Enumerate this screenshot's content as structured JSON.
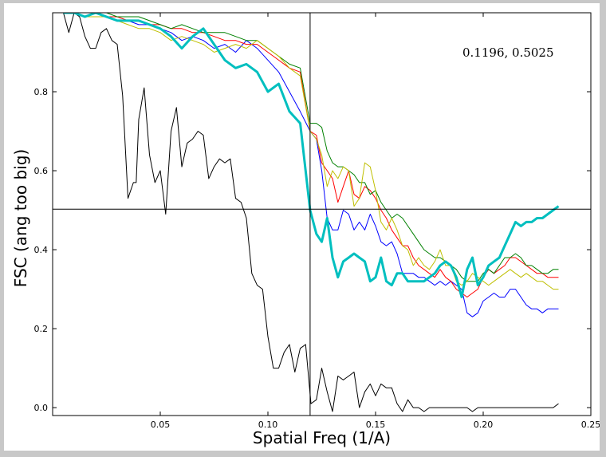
{
  "chart_data": {
    "type": "line",
    "title": "",
    "xlabel": "Spatial Freq (1/A)",
    "ylabel": "FSC (ang too big)",
    "xlim": [
      0.0,
      0.25
    ],
    "ylim": [
      -0.02,
      1.0
    ],
    "xticks": [
      0.05,
      0.1,
      0.15,
      0.2,
      0.25
    ],
    "xtick_labels": [
      "0.05",
      "0.10",
      "0.15",
      "0.20",
      "0.25"
    ],
    "yticks": [
      0.0,
      0.2,
      0.4,
      0.6,
      0.8
    ],
    "ytick_labels": [
      "0.0",
      "0.2",
      "0.4",
      "0.6",
      "0.8"
    ],
    "grid": false,
    "legend": "none",
    "annotation": {
      "text": "0.1196, 0.5025",
      "x": 0.1196,
      "y": 0.5025
    },
    "crosshair": {
      "x": 0.1196,
      "y": 0.5025
    },
    "series": [
      {
        "color": "#000000",
        "width": 1,
        "x": [
          0.005,
          0.0075,
          0.01,
          0.0125,
          0.015,
          0.0175,
          0.02,
          0.0225,
          0.025,
          0.0275,
          0.03,
          0.0325,
          0.035,
          0.0375,
          0.0388,
          0.04,
          0.0425,
          0.045,
          0.0475,
          0.05,
          0.0525,
          0.055,
          0.0575,
          0.06,
          0.0625,
          0.065,
          0.0675,
          0.07,
          0.0725,
          0.075,
          0.0775,
          0.08,
          0.0825,
          0.085,
          0.0875,
          0.09,
          0.0925,
          0.095,
          0.0975,
          0.1,
          0.1025,
          0.105,
          0.1075,
          0.11,
          0.1125,
          0.115,
          0.1175,
          0.12,
          0.1225,
          0.125,
          0.1275,
          0.13,
          0.1325,
          0.135,
          0.1375,
          0.14,
          0.1425,
          0.145,
          0.1475,
          0.15,
          0.1525,
          0.155,
          0.1575,
          0.16,
          0.1625,
          0.165,
          0.1675,
          0.17,
          0.1725,
          0.175,
          0.1775,
          0.18,
          0.1825,
          0.185,
          0.1875,
          0.19,
          0.1925,
          0.195,
          0.1975,
          0.2,
          0.2025,
          0.205,
          0.2075,
          0.21,
          0.2125,
          0.215,
          0.2175,
          0.22,
          0.2225,
          0.225,
          0.2275,
          0.23,
          0.2325,
          0.235
        ],
        "y": [
          1.0,
          0.95,
          1.0,
          0.99,
          0.94,
          0.91,
          0.91,
          0.95,
          0.96,
          0.93,
          0.92,
          0.79,
          0.53,
          0.57,
          0.57,
          0.73,
          0.81,
          0.64,
          0.57,
          0.6,
          0.49,
          0.7,
          0.76,
          0.61,
          0.67,
          0.68,
          0.7,
          0.69,
          0.58,
          0.61,
          0.63,
          0.62,
          0.63,
          0.53,
          0.52,
          0.48,
          0.34,
          0.31,
          0.3,
          0.18,
          0.1,
          0.1,
          0.14,
          0.16,
          0.09,
          0.15,
          0.16,
          0.01,
          0.02,
          0.1,
          0.04,
          -0.01,
          0.08,
          0.07,
          0.08,
          0.09,
          0.0,
          0.04,
          0.06,
          0.03,
          0.06,
          0.05,
          0.05,
          0.01,
          -0.01,
          0.02,
          0.0,
          0.0,
          -0.01,
          0.0,
          0.0,
          0.0,
          0.0,
          0.0,
          0.0,
          0.0,
          0.0,
          -0.01,
          0.0,
          0.0,
          0.0,
          0.0,
          0.0,
          0.0,
          0.0,
          0.0,
          0.0,
          0.0,
          0.0,
          0.0,
          0.0,
          0.0,
          0.0,
          0.01
        ]
      },
      {
        "color": "#0000ff",
        "width": 1,
        "x": [
          0.005,
          0.01,
          0.015,
          0.02,
          0.025,
          0.03,
          0.035,
          0.04,
          0.045,
          0.05,
          0.055,
          0.06,
          0.065,
          0.07,
          0.075,
          0.08,
          0.085,
          0.09,
          0.095,
          0.1,
          0.105,
          0.11,
          0.115,
          0.1196,
          0.1225,
          0.125,
          0.1275,
          0.13,
          0.1325,
          0.135,
          0.1375,
          0.14,
          0.1425,
          0.145,
          0.1475,
          0.15,
          0.1525,
          0.155,
          0.1575,
          0.16,
          0.1625,
          0.165,
          0.1675,
          0.17,
          0.1725,
          0.175,
          0.1775,
          0.18,
          0.1825,
          0.185,
          0.1875,
          0.19,
          0.1925,
          0.195,
          0.1975,
          0.2,
          0.2025,
          0.205,
          0.2075,
          0.21,
          0.2125,
          0.215,
          0.2175,
          0.22,
          0.2225,
          0.225,
          0.2275,
          0.23,
          0.2325,
          0.235
        ],
        "y": [
          1.0,
          1.0,
          0.99,
          1.0,
          0.99,
          0.98,
          0.98,
          0.97,
          0.97,
          0.96,
          0.95,
          0.93,
          0.94,
          0.93,
          0.91,
          0.92,
          0.9,
          0.93,
          0.91,
          0.88,
          0.85,
          0.8,
          0.75,
          0.7,
          0.68,
          0.6,
          0.48,
          0.45,
          0.45,
          0.5,
          0.49,
          0.45,
          0.47,
          0.45,
          0.49,
          0.46,
          0.42,
          0.41,
          0.42,
          0.39,
          0.34,
          0.34,
          0.34,
          0.33,
          0.33,
          0.32,
          0.31,
          0.32,
          0.31,
          0.32,
          0.31,
          0.3,
          0.24,
          0.23,
          0.24,
          0.27,
          0.28,
          0.29,
          0.28,
          0.28,
          0.3,
          0.3,
          0.28,
          0.26,
          0.25,
          0.25,
          0.24,
          0.25,
          0.25,
          0.25
        ]
      },
      {
        "color": "#ff0000",
        "width": 1,
        "x": [
          0.005,
          0.01,
          0.015,
          0.02,
          0.025,
          0.03,
          0.035,
          0.04,
          0.045,
          0.05,
          0.055,
          0.06,
          0.065,
          0.07,
          0.075,
          0.08,
          0.085,
          0.09,
          0.095,
          0.1,
          0.105,
          0.11,
          0.115,
          0.1196,
          0.1225,
          0.125,
          0.1275,
          0.13,
          0.1325,
          0.135,
          0.1375,
          0.14,
          0.1425,
          0.145,
          0.1475,
          0.15,
          0.1525,
          0.155,
          0.1575,
          0.16,
          0.1625,
          0.165,
          0.1675,
          0.17,
          0.1725,
          0.175,
          0.1775,
          0.18,
          0.1825,
          0.185,
          0.1875,
          0.19,
          0.1925,
          0.195,
          0.1975,
          0.2,
          0.2025,
          0.205,
          0.2075,
          0.21,
          0.2125,
          0.215,
          0.2175,
          0.22,
          0.2225,
          0.225,
          0.2275,
          0.23,
          0.2325,
          0.235
        ],
        "y": [
          1.0,
          1.0,
          1.0,
          1.0,
          0.99,
          0.99,
          0.98,
          0.98,
          0.97,
          0.97,
          0.96,
          0.96,
          0.95,
          0.95,
          0.94,
          0.93,
          0.93,
          0.92,
          0.92,
          0.9,
          0.88,
          0.86,
          0.85,
          0.7,
          0.69,
          0.62,
          0.6,
          0.58,
          0.52,
          0.56,
          0.6,
          0.54,
          0.53,
          0.56,
          0.55,
          0.53,
          0.5,
          0.48,
          0.45,
          0.43,
          0.41,
          0.41,
          0.38,
          0.36,
          0.35,
          0.34,
          0.33,
          0.35,
          0.33,
          0.32,
          0.3,
          0.29,
          0.28,
          0.29,
          0.3,
          0.33,
          0.35,
          0.34,
          0.35,
          0.36,
          0.38,
          0.38,
          0.37,
          0.36,
          0.35,
          0.34,
          0.34,
          0.33,
          0.33,
          0.33
        ]
      },
      {
        "color": "#008000",
        "width": 1,
        "x": [
          0.005,
          0.01,
          0.015,
          0.02,
          0.025,
          0.03,
          0.035,
          0.04,
          0.045,
          0.05,
          0.055,
          0.06,
          0.065,
          0.07,
          0.075,
          0.08,
          0.085,
          0.09,
          0.095,
          0.1,
          0.105,
          0.11,
          0.115,
          0.1196,
          0.1225,
          0.125,
          0.1275,
          0.13,
          0.1325,
          0.135,
          0.1375,
          0.14,
          0.1425,
          0.145,
          0.1475,
          0.15,
          0.1525,
          0.155,
          0.1575,
          0.16,
          0.1625,
          0.165,
          0.1675,
          0.17,
          0.1725,
          0.175,
          0.1775,
          0.18,
          0.1825,
          0.185,
          0.1875,
          0.19,
          0.1925,
          0.195,
          0.1975,
          0.2,
          0.2025,
          0.205,
          0.2075,
          0.21,
          0.2125,
          0.215,
          0.2175,
          0.22,
          0.2225,
          0.225,
          0.2275,
          0.23,
          0.2325,
          0.235
        ],
        "y": [
          1.0,
          1.0,
          1.0,
          1.0,
          1.0,
          0.99,
          0.99,
          0.99,
          0.98,
          0.97,
          0.96,
          0.97,
          0.96,
          0.95,
          0.95,
          0.95,
          0.94,
          0.93,
          0.93,
          0.91,
          0.89,
          0.87,
          0.86,
          0.72,
          0.72,
          0.71,
          0.65,
          0.62,
          0.61,
          0.61,
          0.6,
          0.59,
          0.57,
          0.57,
          0.54,
          0.55,
          0.52,
          0.5,
          0.48,
          0.49,
          0.48,
          0.46,
          0.44,
          0.42,
          0.4,
          0.39,
          0.38,
          0.38,
          0.37,
          0.36,
          0.35,
          0.33,
          0.32,
          0.32,
          0.32,
          0.34,
          0.35,
          0.34,
          0.36,
          0.38,
          0.38,
          0.39,
          0.38,
          0.36,
          0.36,
          0.35,
          0.34,
          0.34,
          0.35,
          0.35
        ]
      },
      {
        "color": "#bfbf00",
        "width": 1,
        "x": [
          0.005,
          0.01,
          0.015,
          0.02,
          0.025,
          0.03,
          0.035,
          0.04,
          0.045,
          0.05,
          0.055,
          0.06,
          0.065,
          0.07,
          0.075,
          0.08,
          0.085,
          0.09,
          0.095,
          0.1,
          0.105,
          0.11,
          0.115,
          0.1196,
          0.1225,
          0.125,
          0.1275,
          0.13,
          0.1325,
          0.135,
          0.1375,
          0.14,
          0.1425,
          0.145,
          0.1475,
          0.15,
          0.1525,
          0.155,
          0.1575,
          0.16,
          0.1625,
          0.165,
          0.1675,
          0.17,
          0.1725,
          0.175,
          0.1775,
          0.18,
          0.1825,
          0.185,
          0.1875,
          0.19,
          0.1925,
          0.195,
          0.1975,
          0.2,
          0.2025,
          0.205,
          0.2075,
          0.21,
          0.2125,
          0.215,
          0.2175,
          0.22,
          0.2225,
          0.225,
          0.2275,
          0.23,
          0.2325,
          0.235
        ],
        "y": [
          1.0,
          1.0,
          0.99,
          0.99,
          0.99,
          0.98,
          0.97,
          0.96,
          0.96,
          0.95,
          0.93,
          0.94,
          0.93,
          0.92,
          0.9,
          0.91,
          0.92,
          0.91,
          0.93,
          0.91,
          0.89,
          0.86,
          0.84,
          0.7,
          0.68,
          0.64,
          0.56,
          0.6,
          0.58,
          0.61,
          0.6,
          0.51,
          0.53,
          0.62,
          0.61,
          0.55,
          0.47,
          0.45,
          0.48,
          0.45,
          0.41,
          0.4,
          0.36,
          0.38,
          0.36,
          0.35,
          0.37,
          0.4,
          0.36,
          0.36,
          0.32,
          0.31,
          0.32,
          0.34,
          0.33,
          0.32,
          0.31,
          0.32,
          0.33,
          0.34,
          0.35,
          0.34,
          0.33,
          0.34,
          0.33,
          0.32,
          0.32,
          0.31,
          0.3,
          0.3
        ]
      },
      {
        "color": "#00bfbf",
        "width": 3,
        "x": [
          0.005,
          0.01,
          0.015,
          0.02,
          0.025,
          0.03,
          0.035,
          0.04,
          0.045,
          0.05,
          0.055,
          0.06,
          0.065,
          0.07,
          0.075,
          0.08,
          0.085,
          0.09,
          0.095,
          0.1,
          0.105,
          0.11,
          0.115,
          0.1196,
          0.1225,
          0.125,
          0.1275,
          0.13,
          0.1325,
          0.135,
          0.1375,
          0.14,
          0.1425,
          0.145,
          0.1475,
          0.15,
          0.1525,
          0.155,
          0.1575,
          0.16,
          0.1625,
          0.165,
          0.1675,
          0.17,
          0.1725,
          0.175,
          0.1775,
          0.18,
          0.1825,
          0.185,
          0.1875,
          0.19,
          0.1925,
          0.195,
          0.1975,
          0.2,
          0.2025,
          0.205,
          0.2075,
          0.21,
          0.2125,
          0.215,
          0.2175,
          0.22,
          0.2225,
          0.225,
          0.2275,
          0.23,
          0.2325,
          0.235
        ],
        "y": [
          1.0,
          1.0,
          0.99,
          1.0,
          0.99,
          0.98,
          0.98,
          0.98,
          0.97,
          0.96,
          0.94,
          0.91,
          0.94,
          0.96,
          0.92,
          0.88,
          0.86,
          0.87,
          0.85,
          0.8,
          0.82,
          0.75,
          0.72,
          0.5,
          0.44,
          0.42,
          0.48,
          0.38,
          0.33,
          0.37,
          0.38,
          0.39,
          0.38,
          0.37,
          0.32,
          0.33,
          0.38,
          0.32,
          0.31,
          0.34,
          0.34,
          0.32,
          0.32,
          0.32,
          0.32,
          0.33,
          0.34,
          0.36,
          0.37,
          0.36,
          0.33,
          0.28,
          0.35,
          0.38,
          0.31,
          0.33,
          0.36,
          0.37,
          0.38,
          0.41,
          0.44,
          0.47,
          0.46,
          0.47,
          0.47,
          0.48,
          0.48,
          0.49,
          0.5,
          0.51
        ]
      }
    ]
  }
}
